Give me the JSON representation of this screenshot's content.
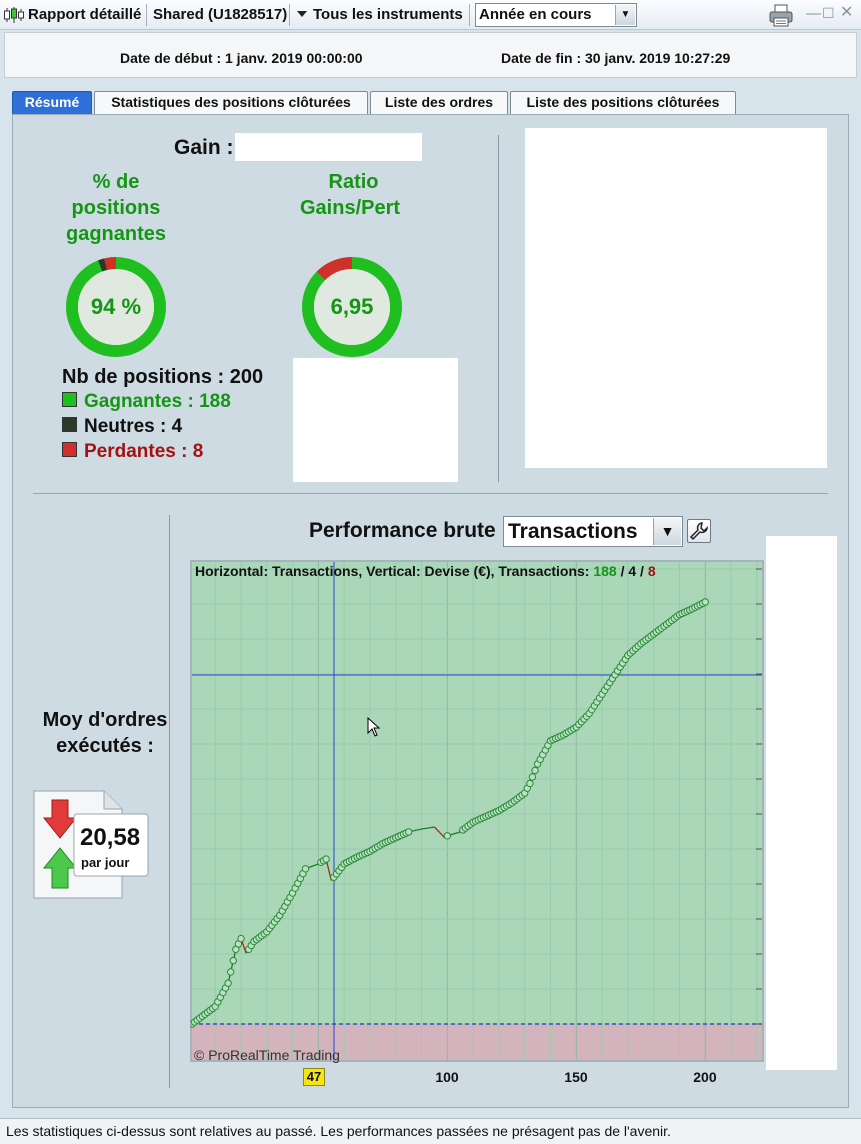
{
  "toolbar": {
    "report_label": "Rapport détaillé",
    "account_label": "Shared (U1828517)",
    "instruments_label": "Tous les instruments",
    "period_select": "Année en cours",
    "icons": [
      "candlestick-icon",
      "chevron-down-icon",
      "printer-icon",
      "minimize-icon",
      "maximize-icon",
      "close-icon"
    ]
  },
  "dates": {
    "start": "Date de début : 1 janv. 2019 00:00:00",
    "end": "Date de fin : 30 janv. 2019 10:27:29"
  },
  "tabs": [
    {
      "label": "Résumé",
      "active": true
    },
    {
      "label": "Statistiques des positions clôturées",
      "active": false
    },
    {
      "label": "Liste des ordres",
      "active": false
    },
    {
      "label": "Liste des positions clôturées",
      "active": false
    }
  ],
  "summary": {
    "gain_label": "Gain :",
    "win_pct_title": "% de positions gagnantes",
    "win_pct_value": "94 %",
    "win_fraction": 0.94,
    "ratio_title": "Ratio Gains/Pert",
    "ratio_value": "6,95",
    "ratio_fraction": 0.874,
    "nb_positions": "Nb de positions : 200",
    "winners": "Gagnantes : 188",
    "neutral": "Neutres : 4",
    "losers": "Perdantes : 8",
    "colors": {
      "win": "#1fbf1f",
      "neutral": "#2a3a2a",
      "loss": "#d0302a"
    }
  },
  "orders": {
    "label": "Moy d'ordres exécutés :",
    "value": "20,58",
    "unit": "par jour"
  },
  "performance": {
    "title": "Performance brute",
    "select_value": "Transactions",
    "info_prefix": "Horizontal: Transactions, Vertical: Devise (€), Transactions: ",
    "info_win": "188",
    "info_sep1": " / ",
    "info_neutral": "4",
    "info_sep2": " / ",
    "info_loss": "8",
    "copyright": "© ProRealTime Trading",
    "cursor_x_label": "47"
  },
  "chart_data": {
    "type": "line",
    "xlabel": "",
    "ylabel": "",
    "x_ticks": [
      100,
      150,
      200
    ],
    "xlim": [
      1,
      222
    ],
    "grid": true,
    "series": [
      {
        "x": [
          1,
          10,
          15,
          18,
          20,
          22,
          25,
          30,
          35,
          40,
          45,
          48,
          50,
          53,
          55,
          58,
          60,
          65,
          70,
          75,
          80,
          85,
          90,
          95,
          99,
          100,
          105,
          110,
          115,
          120,
          125,
          130,
          132,
          135,
          140,
          145,
          150,
          155,
          160,
          165,
          170,
          175,
          180,
          185,
          190,
          195,
          200
        ],
        "y": [
          0,
          18,
          42,
          77,
          88,
          73,
          85,
          95,
          112,
          135,
          160,
          163,
          165,
          170,
          148,
          158,
          165,
          172,
          178,
          186,
          192,
          198,
          201,
          203,
          192,
          194,
          198,
          208,
          214,
          220,
          228,
          238,
          248,
          268,
          292,
          298,
          306,
          320,
          340,
          360,
          380,
          392,
          402,
          412,
          422,
          428,
          435
        ]
      }
    ],
    "losing_trade_x": [
      22,
      55,
      99
    ],
    "colors": {
      "line": "#1d7a2a",
      "marker": "#2a8a35",
      "loss_segment": "#b02020",
      "profit_area": "#a9d7b8",
      "loss_area": "#d3b4bd"
    }
  },
  "footer": "Les statistiques ci-dessus sont relatives au passé. Les performances passées ne présagent pas de l'avenir."
}
